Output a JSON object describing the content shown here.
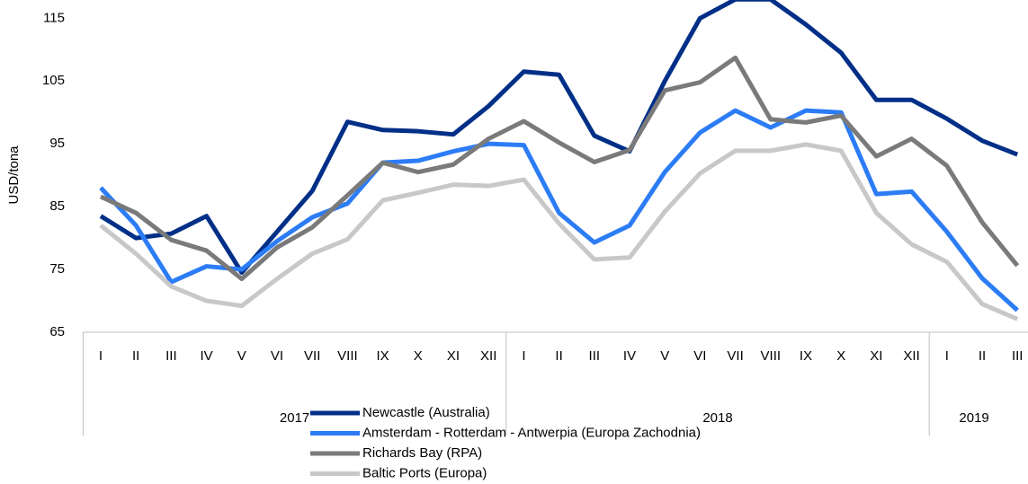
{
  "chart_data": {
    "type": "line",
    "y_label": "USD/tona",
    "categories": [
      "I",
      "II",
      "III",
      "IV",
      "V",
      "VI",
      "VII",
      "VIII",
      "IX",
      "X",
      "XI",
      "XII",
      "I",
      "II",
      "III",
      "IV",
      "V",
      "VI",
      "VII",
      "VIII",
      "IX",
      "X",
      "XI",
      "XII",
      "I",
      "II",
      "III"
    ],
    "year_groups": [
      {
        "label": "2017",
        "span": 12
      },
      {
        "label": "2018",
        "span": 12
      },
      {
        "label": "2019",
        "span": 3
      }
    ],
    "series": [
      {
        "name": "Newcastle (Australia)",
        "color": "#002f87",
        "values": [
          83.5,
          80,
          80.7,
          83.5,
          74.5,
          81,
          87.5,
          98.5,
          97.2,
          97,
          96.5,
          101,
          106.5,
          106,
          96.3,
          93.8,
          105,
          115,
          118,
          118,
          114,
          109.5,
          102,
          102,
          99,
          95.5,
          93.3
        ]
      },
      {
        "name": "Amsterdam - Rotterdam - Antwerpia (Europa Zachodnia)",
        "color": "#2c7cf6",
        "values": [
          88,
          82,
          73,
          75.5,
          75,
          79.5,
          83.3,
          85.5,
          92,
          92.3,
          93.8,
          95,
          94.8,
          84,
          79.3,
          82,
          90.5,
          96.8,
          100.3,
          97.6,
          100.3,
          100,
          87,
          87.4,
          81,
          73.6,
          68.5
        ]
      },
      {
        "name": "Richards Bay (RPA)",
        "color": "#7a7a7a",
        "values": [
          86.6,
          84,
          79.7,
          78,
          73.5,
          78.5,
          81.7,
          86.8,
          92,
          90.5,
          91.7,
          95.8,
          98.6,
          95.2,
          92.1,
          94,
          103.5,
          104.8,
          108.7,
          98.9,
          98.4,
          99.5,
          93,
          95.8,
          91.5,
          82.5,
          75.6
        ]
      },
      {
        "name": "Baltic Ports (Europa)",
        "color": "#c8c8c8",
        "values": [
          82,
          77.5,
          72.3,
          70,
          69.2,
          73.5,
          77.5,
          79.8,
          86,
          87.2,
          88.5,
          88.3,
          89.3,
          82.3,
          76.6,
          76.9,
          84.2,
          90.3,
          93.9,
          93.9,
          94.9,
          93.9,
          84,
          79,
          76.2,
          69.5,
          67.1
        ]
      }
    ],
    "ylim": [
      65,
      117.9
    ],
    "yticks": [
      65,
      75,
      85,
      95,
      105,
      115
    ],
    "grid": false
  }
}
